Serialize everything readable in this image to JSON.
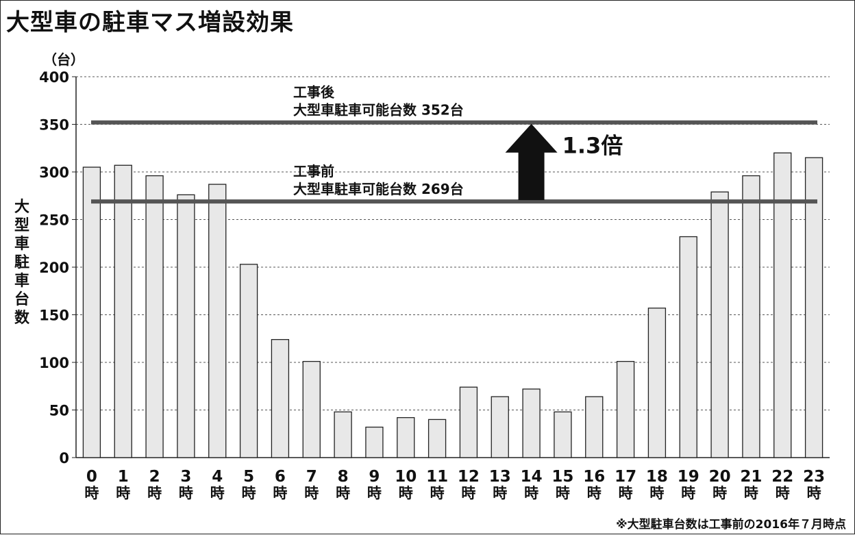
{
  "title": "大型車の駐車マス増設効果",
  "unit_label": "（台）",
  "footnote": "※大型駐車台数は工事前の2016年７月時点",
  "colors": {
    "bar_fill": "#e8e8e8",
    "bar_stroke": "#222222",
    "capacity_line": "#555555",
    "arrow": "#111111",
    "grid": "#555555"
  },
  "chart_data": {
    "type": "bar",
    "title": "大型車の駐車マス増設効果",
    "ylabel": "大型車駐車台数",
    "xlabel": "",
    "ylim": [
      0,
      400
    ],
    "yticks": [
      0,
      50,
      100,
      150,
      200,
      250,
      300,
      350,
      400
    ],
    "grid": true,
    "categories": [
      [
        "0",
        "時"
      ],
      [
        "1",
        "時"
      ],
      [
        "2",
        "時"
      ],
      [
        "3",
        "時"
      ],
      [
        "4",
        "時"
      ],
      [
        "5",
        "時"
      ],
      [
        "6",
        "時"
      ],
      [
        "7",
        "時"
      ],
      [
        "8",
        "時"
      ],
      [
        "9",
        "時"
      ],
      [
        "10",
        "時"
      ],
      [
        "11",
        "時"
      ],
      [
        "12",
        "時"
      ],
      [
        "13",
        "時"
      ],
      [
        "14",
        "時"
      ],
      [
        "15",
        "時"
      ],
      [
        "16",
        "時"
      ],
      [
        "17",
        "時"
      ],
      [
        "18",
        "時"
      ],
      [
        "19",
        "時"
      ],
      [
        "20",
        "時"
      ],
      [
        "21",
        "時"
      ],
      [
        "22",
        "時"
      ],
      [
        "23",
        "時"
      ]
    ],
    "values": [
      305,
      307,
      296,
      276,
      287,
      203,
      124,
      101,
      48,
      32,
      42,
      40,
      74,
      64,
      72,
      48,
      64,
      101,
      157,
      232,
      279,
      296,
      320,
      315
    ],
    "reference_lines": [
      {
        "label_line1": "工事後",
        "label_line2": "大型車駐車可能台数  352台",
        "value": 352
      },
      {
        "label_line1": "工事前",
        "label_line2": "大型車駐車可能台数  269台",
        "value": 269
      }
    ],
    "annotation": {
      "text": "1.3倍",
      "from": 269,
      "to": 352,
      "category_index": 15
    }
  }
}
